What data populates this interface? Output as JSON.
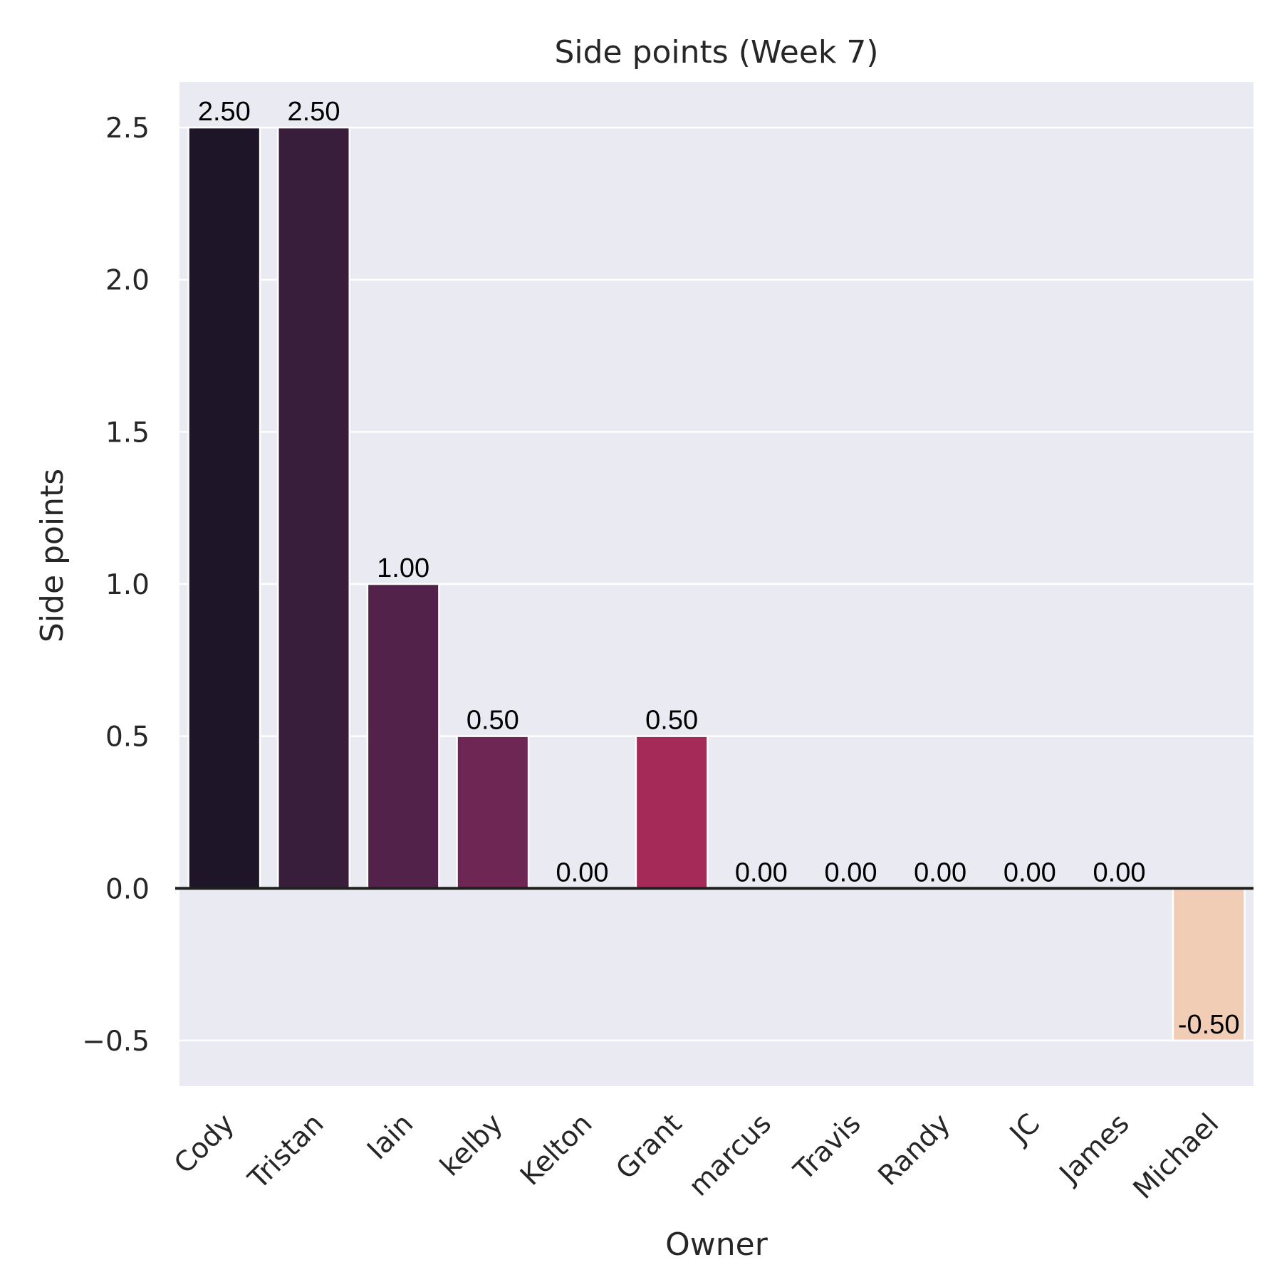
{
  "chart_data": {
    "type": "bar",
    "title": "Side points (Week 7)",
    "xlabel": "Owner",
    "ylabel": "Side points",
    "categories": [
      "Cody",
      "Tristan",
      "Iain",
      "kelby",
      "Kelton",
      "Grant",
      "marcus",
      "Travis",
      "Randy",
      "JC",
      "James",
      "Michael"
    ],
    "values": [
      2.5,
      2.5,
      1.0,
      0.5,
      0.0,
      0.5,
      0.0,
      0.0,
      0.0,
      0.0,
      0.0,
      -0.5
    ],
    "data_labels": [
      "2.50",
      "2.50",
      "1.00",
      "0.50",
      "0.00",
      "0.50",
      "0.00",
      "0.00",
      "0.00",
      "0.00",
      "0.00",
      "-0.50"
    ],
    "colors": [
      "#1e1628",
      "#381e3a",
      "#52224a",
      "#6e2654",
      "#8b2758",
      "#a52a58",
      "#bf2a53",
      "#d63a4a",
      "#e35b4a",
      "#ec8463",
      "#f0a985",
      "#f1cdb5"
    ],
    "ylim": [
      -0.65,
      2.65
    ],
    "yticks": [
      -0.5,
      0.0,
      0.5,
      1.0,
      1.5,
      2.0,
      2.5
    ],
    "ytick_labels": [
      "−0.5",
      "0.0",
      "0.5",
      "1.0",
      "1.5",
      "2.0",
      "2.5"
    ],
    "grid": true,
    "zero_line": true,
    "background": "#eaeaf2",
    "grid_color": "#ffffff"
  }
}
